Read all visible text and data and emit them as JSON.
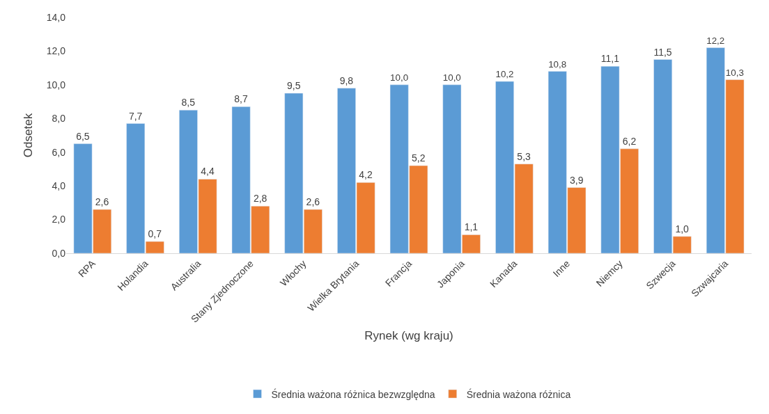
{
  "chart_data": {
    "type": "bar",
    "xlabel": "Rynek (wg kraju)",
    "ylabel": "Odsetek",
    "categories": [
      "RPA",
      "Holandia",
      "Australia",
      "Stany Zjednoczone",
      "Włochy",
      "Wielka Brytania",
      "Francja",
      "Japonia",
      "Kanada",
      "Inne",
      "Niemcy",
      "Szwecja",
      "Szwajcaria"
    ],
    "series": [
      {
        "name": "Średnia ważona różnica bezwzględna",
        "color": "#5b9bd5",
        "values": [
          6.5,
          7.7,
          8.5,
          8.7,
          9.5,
          9.8,
          10.0,
          10.0,
          10.2,
          10.8,
          11.1,
          11.5,
          12.2
        ],
        "value_labels": [
          "6,5",
          "7,7",
          "8,5",
          "8,7",
          "9,5",
          "9,8",
          "10,0",
          "10,0",
          "10,2",
          "10,8",
          "11,1",
          "11,5",
          "12,2"
        ]
      },
      {
        "name": "Średnia ważona różnica",
        "color": "#ed7d31",
        "values": [
          2.6,
          0.7,
          4.4,
          2.8,
          2.6,
          4.2,
          5.2,
          1.1,
          5.3,
          3.9,
          6.2,
          1.0,
          10.3
        ],
        "value_labels": [
          "2,6",
          "0,7",
          "4,4",
          "2,8",
          "2,6",
          "4,2",
          "5,2",
          "1,1",
          "5,3",
          "3,9",
          "6,2",
          "1,0",
          "10,3"
        ]
      }
    ],
    "ylim": [
      0,
      14
    ],
    "yticks": [
      {
        "value": 0,
        "label": "0,0"
      },
      {
        "value": 2,
        "label": "2,0"
      },
      {
        "value": 4,
        "label": "4,0"
      },
      {
        "value": 6,
        "label": "6,0"
      },
      {
        "value": 8,
        "label": "8,0"
      },
      {
        "value": 10,
        "label": "10,0"
      },
      {
        "value": 12,
        "label": "12,0"
      },
      {
        "value": 14,
        "label": "14,0"
      }
    ],
    "legend": "bottom"
  }
}
